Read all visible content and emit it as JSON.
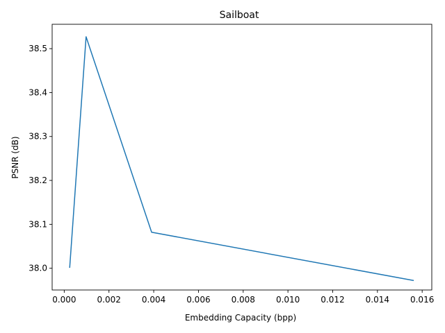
{
  "chart_data": {
    "type": "line",
    "title": "Sailboat",
    "xlabel": "Embedding Capacity (bpp)",
    "ylabel": "PSNR (dB)",
    "xlim": [
      -0.00054,
      0.01643
    ],
    "ylim": [
      37.9505,
      38.5555
    ],
    "xticks": [
      0.0,
      0.002,
      0.004,
      0.006,
      0.008,
      0.01,
      0.012,
      0.014,
      0.016
    ],
    "xtick_labels": [
      "0.000",
      "0.002",
      "0.004",
      "0.006",
      "0.008",
      "0.010",
      "0.012",
      "0.014",
      "0.016"
    ],
    "yticks": [
      38.0,
      38.1,
      38.2,
      38.3,
      38.4,
      38.5
    ],
    "ytick_labels": [
      "38.0",
      "38.1",
      "38.2",
      "38.3",
      "38.4",
      "38.5"
    ],
    "grid": false,
    "series": [
      {
        "color": "#1f77b4",
        "x": [
          0.000244,
          0.000977,
          0.003906,
          0.015625
        ],
        "y": [
          38.001,
          38.527,
          38.082,
          37.972
        ]
      }
    ]
  }
}
